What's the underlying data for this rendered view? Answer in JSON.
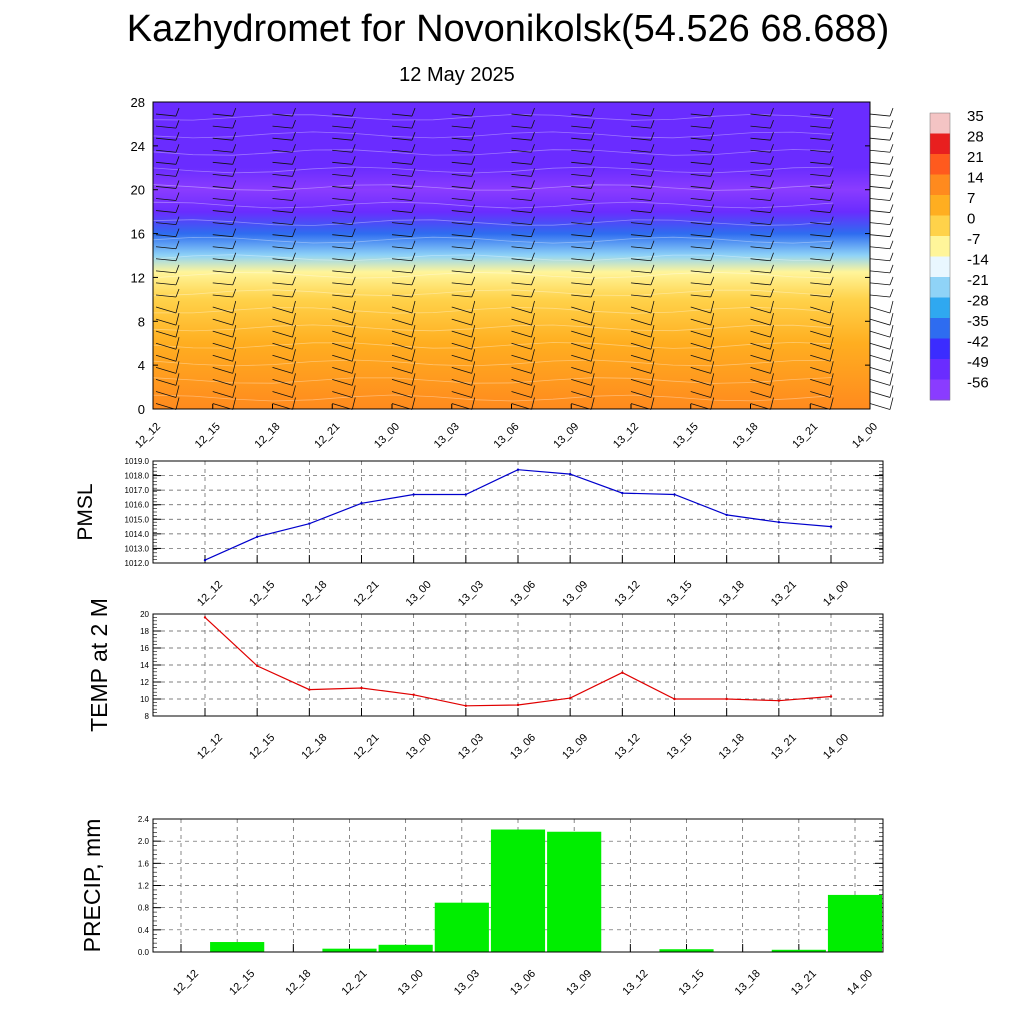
{
  "title": "Kazhydromet for Novonikolsk(54.526 68.688)",
  "date": "12 May 2025",
  "time_labels": [
    "12_12",
    "12_15",
    "12_18",
    "12_21",
    "13_00",
    "13_03",
    "13_06",
    "13_09",
    "13_12",
    "13_15",
    "13_18",
    "13_21",
    "14_00"
  ],
  "chart_data": [
    {
      "type": "heatmap",
      "title": "",
      "xlabel": "",
      "ylabel": "",
      "x": [
        "12_12",
        "12_15",
        "12_18",
        "12_21",
        "13_00",
        "13_03",
        "13_06",
        "13_09",
        "13_12",
        "13_15",
        "13_18",
        "13_21",
        "14_00"
      ],
      "y_ticks": [
        0,
        4,
        8,
        12,
        16,
        20,
        24,
        28
      ],
      "ylim": [
        0,
        28
      ],
      "colorbar": {
        "labels": [
          35,
          28,
          21,
          14,
          7,
          0,
          -7,
          -14,
          -21,
          -28,
          -35,
          -42,
          -49,
          -56
        ],
        "colors": [
          "#f4c4c4",
          "#e81f1f",
          "#ff5a1e",
          "#ff8a1e",
          "#ffae20",
          "#ffd24a",
          "#fff59a",
          "#e9f7ff",
          "#8fd3f7",
          "#2fa8f0",
          "#2e6cf0",
          "#3b2cff",
          "#6a2cff",
          "#8a3cff"
        ]
      },
      "temperature_profile": [
        {
          "level": 0,
          "value": 14
        },
        {
          "level": 6,
          "value": 7
        },
        {
          "level": 10,
          "value": 0
        },
        {
          "level": 12.5,
          "value": -10
        },
        {
          "level": 14,
          "value": -22
        },
        {
          "level": 16,
          "value": -35
        },
        {
          "level": 18,
          "value": -49
        },
        {
          "level": 20,
          "value": -56
        },
        {
          "level": 22,
          "value": -52
        },
        {
          "level": 28,
          "value": -50
        }
      ],
      "wind_barbs": true,
      "grid": false
    },
    {
      "type": "line",
      "title": "",
      "xlabel": "",
      "ylabel": "PMSL",
      "x": [
        "12_12",
        "12_15",
        "12_18",
        "12_21",
        "13_00",
        "13_03",
        "13_06",
        "13_09",
        "13_12",
        "13_15",
        "13_18",
        "13_21",
        "14_00"
      ],
      "y_ticks": [
        "1012.0",
        "1013.0",
        "1014.0",
        "1015.0",
        "1016.0",
        "1017.0",
        "1018.0",
        "1019.0"
      ],
      "ylim": [
        1012,
        1019
      ],
      "series": [
        {
          "color": "#0000cc",
          "values": [
            1012.2,
            1013.8,
            1014.7,
            1016.1,
            1016.7,
            1016.7,
            1018.4,
            1018.1,
            1016.8,
            1016.7,
            1015.3,
            1014.8,
            1014.5
          ]
        }
      ],
      "grid": true
    },
    {
      "type": "line",
      "title": "",
      "xlabel": "",
      "ylabel": "TEMP at 2 M",
      "x": [
        "12_12",
        "12_15",
        "12_18",
        "12_21",
        "13_00",
        "13_03",
        "13_06",
        "13_09",
        "13_12",
        "13_15",
        "13_18",
        "13_21",
        "14_00"
      ],
      "y_ticks": [
        "8",
        "10",
        "12",
        "14",
        "16",
        "18",
        "20"
      ],
      "ylim": [
        8,
        20
      ],
      "series": [
        {
          "color": "#e00000",
          "values": [
            19.6,
            13.9,
            11.1,
            11.3,
            10.5,
            9.2,
            9.3,
            10.1,
            13.1,
            10.0,
            10.0,
            9.8,
            10.3
          ]
        }
      ],
      "grid": true
    },
    {
      "type": "bar",
      "title": "",
      "xlabel": "",
      "ylabel": "PRECIP, mm",
      "categories": [
        "12_12",
        "12_15",
        "12_18",
        "12_21",
        "13_00",
        "13_03",
        "13_06",
        "13_09",
        "13_12",
        "13_15",
        "13_18",
        "13_21",
        "14_00"
      ],
      "y_ticks": [
        "0.0",
        "0.4",
        "0.8",
        "1.2",
        "1.6",
        "2.0",
        "2.4"
      ],
      "ylim": [
        0,
        2.4
      ],
      "series": [
        {
          "color": "#00ee00",
          "values": [
            0,
            0.18,
            0,
            0.06,
            0.13,
            0.89,
            2.21,
            2.17,
            0,
            0.05,
            0,
            0.04,
            1.03
          ]
        }
      ],
      "grid": true
    }
  ]
}
